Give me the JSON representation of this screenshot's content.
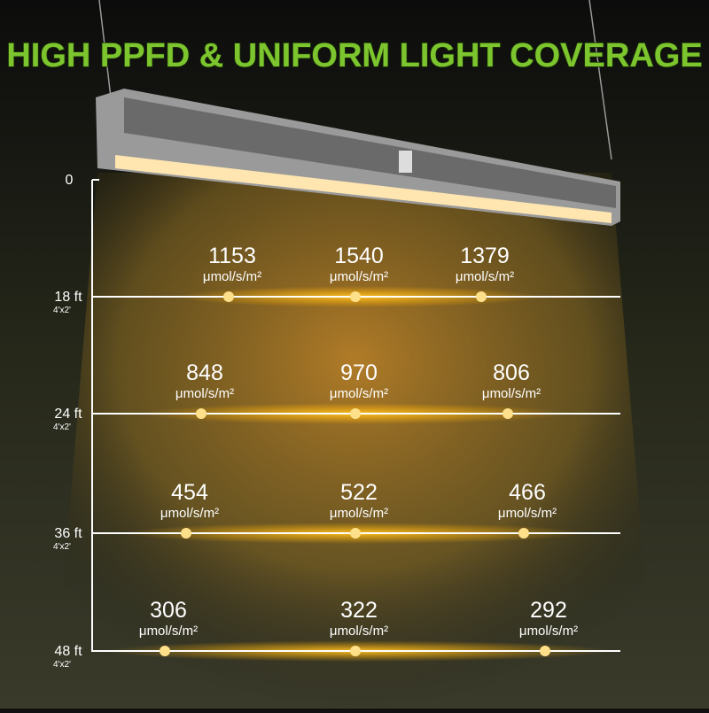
{
  "header": {
    "title": "HIGH PPFD & UNIFORM LIGHT COVERAGE"
  },
  "axis": {
    "origin": "0"
  },
  "unit": "μmol/s/m²",
  "levels": [
    {
      "height": "18 ft",
      "area": "4'x2'",
      "readings": [
        1153,
        1540,
        1379
      ]
    },
    {
      "height": "24 ft",
      "area": "4'x2'",
      "readings": [
        848,
        970,
        806
      ]
    },
    {
      "height": "36 ft",
      "area": "4'x2'",
      "readings": [
        454,
        522,
        466
      ]
    },
    {
      "height": "48 ft",
      "area": "4'x2'",
      "readings": [
        306,
        322,
        292
      ]
    }
  ]
}
